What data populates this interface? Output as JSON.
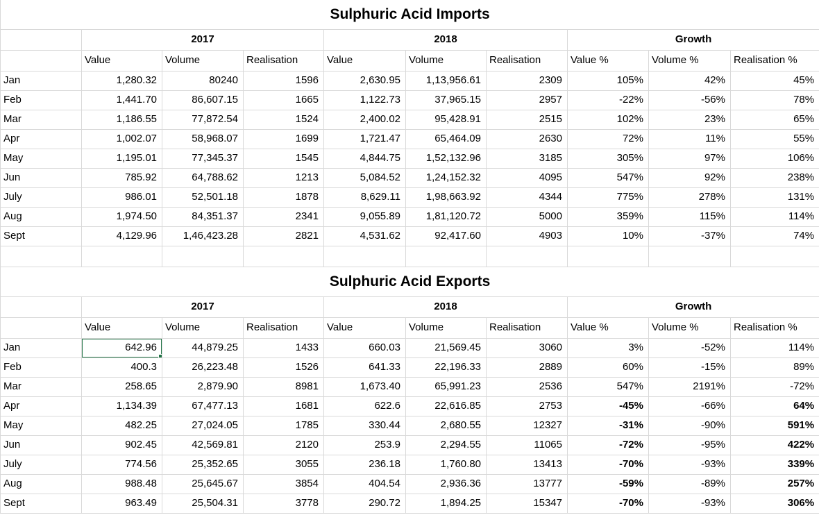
{
  "colors": {
    "selection_border": "#217346",
    "gridline": "#d9d9d9",
    "text": "#000000",
    "background": "#ffffff"
  },
  "imports": {
    "title": "Sulphuric Acid Imports",
    "group_headers": {
      "y2017": "2017",
      "y2018": "2018",
      "growth": "Growth"
    },
    "column_headers": [
      "Value",
      "Volume",
      "Realisation",
      "Value",
      "Volume",
      "Realisation",
      "Value %",
      "Volume %",
      "Realisation %"
    ],
    "rows": [
      {
        "month": "Jan",
        "values": [
          "1,280.32",
          "80240",
          "1596",
          "2,630.95",
          "1,13,956.61",
          "2309",
          "105%",
          "42%",
          "45%"
        ],
        "bold": []
      },
      {
        "month": "Feb",
        "values": [
          "1,441.70",
          "86,607.15",
          "1665",
          "1,122.73",
          "37,965.15",
          "2957",
          "-22%",
          "-56%",
          "78%"
        ],
        "bold": []
      },
      {
        "month": "Mar",
        "values": [
          "1,186.55",
          "77,872.54",
          "1524",
          "2,400.02",
          "95,428.91",
          "2515",
          "102%",
          "23%",
          "65%"
        ],
        "bold": []
      },
      {
        "month": "Apr",
        "values": [
          "1,002.07",
          "58,968.07",
          "1699",
          "1,721.47",
          "65,464.09",
          "2630",
          "72%",
          "11%",
          "55%"
        ],
        "bold": []
      },
      {
        "month": "May",
        "values": [
          "1,195.01",
          "77,345.37",
          "1545",
          "4,844.75",
          "1,52,132.96",
          "3185",
          "305%",
          "97%",
          "106%"
        ],
        "bold": []
      },
      {
        "month": "Jun",
        "values": [
          "785.92",
          "64,788.62",
          "1213",
          "5,084.52",
          "1,24,152.32",
          "4095",
          "547%",
          "92%",
          "238%"
        ],
        "bold": []
      },
      {
        "month": "July",
        "values": [
          "986.01",
          "52,501.18",
          "1878",
          "8,629.11",
          "1,98,663.92",
          "4344",
          "775%",
          "278%",
          "131%"
        ],
        "bold": []
      },
      {
        "month": "Aug",
        "values": [
          "1,974.50",
          "84,351.37",
          "2341",
          "9,055.89",
          "1,81,120.72",
          "5000",
          "359%",
          "115%",
          "114%"
        ],
        "bold": []
      },
      {
        "month": "Sept",
        "values": [
          "4,129.96",
          "1,46,423.28",
          "2821",
          "4,531.62",
          "92,417.60",
          "4903",
          "10%",
          "-37%",
          "74%"
        ],
        "bold": []
      }
    ]
  },
  "exports": {
    "title": "Sulphuric Acid Exports",
    "group_headers": {
      "y2017": "2017",
      "y2018": "2018",
      "growth": "Growth"
    },
    "column_headers": [
      "Value",
      "Volume",
      "Realisation",
      "Value",
      "Volume",
      "Realisation",
      "Value %",
      "Volume %",
      "Realisation %"
    ],
    "rows": [
      {
        "month": "Jan",
        "values": [
          "642.96",
          "44,879.25",
          "1433",
          "660.03",
          "21,569.45",
          "3060",
          "3%",
          "-52%",
          "114%"
        ],
        "bold": [],
        "selected": 0
      },
      {
        "month": "Feb",
        "values": [
          "400.3",
          "26,223.48",
          "1526",
          "641.33",
          "22,196.33",
          "2889",
          "60%",
          "-15%",
          "89%"
        ],
        "bold": []
      },
      {
        "month": "Mar",
        "values": [
          "258.65",
          "2,879.90",
          "8981",
          "1,673.40",
          "65,991.23",
          "2536",
          "547%",
          "2191%",
          "-72%"
        ],
        "bold": []
      },
      {
        "month": "Apr",
        "values": [
          "1,134.39",
          "67,477.13",
          "1681",
          "622.6",
          "22,616.85",
          "2753",
          "-45%",
          "-66%",
          "64%"
        ],
        "bold": [
          6,
          8
        ]
      },
      {
        "month": "May",
        "values": [
          "482.25",
          "27,024.05",
          "1785",
          "330.44",
          "2,680.55",
          "12327",
          "-31%",
          "-90%",
          "591%"
        ],
        "bold": [
          6,
          8
        ]
      },
      {
        "month": "Jun",
        "values": [
          "902.45",
          "42,569.81",
          "2120",
          "253.9",
          "2,294.55",
          "11065",
          "-72%",
          "-95%",
          "422%"
        ],
        "bold": [
          6,
          8
        ]
      },
      {
        "month": "July",
        "values": [
          "774.56",
          "25,352.65",
          "3055",
          "236.18",
          "1,760.80",
          "13413",
          "-70%",
          "-93%",
          "339%"
        ],
        "bold": [
          6,
          8
        ]
      },
      {
        "month": "Aug",
        "values": [
          "988.48",
          "25,645.67",
          "3854",
          "404.54",
          "2,936.36",
          "13777",
          "-59%",
          "-89%",
          "257%"
        ],
        "bold": [
          6,
          8
        ]
      },
      {
        "month": "Sept",
        "values": [
          "963.49",
          "25,504.31",
          "3778",
          "290.72",
          "1,894.25",
          "15347",
          "-70%",
          "-93%",
          "306%"
        ],
        "bold": [
          6,
          8
        ]
      }
    ]
  },
  "selection": {
    "table": "exports",
    "month": "Jan",
    "column_header": "Value",
    "year": "2017",
    "value": "642.96"
  }
}
